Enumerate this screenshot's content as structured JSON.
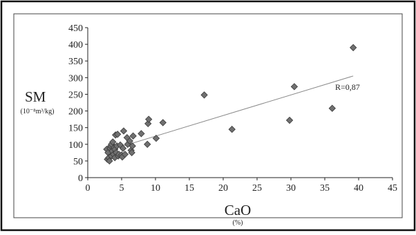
{
  "chart_data": {
    "type": "scatter",
    "xlabel": "CaO",
    "xunit": "(%)",
    "ylabel": "SM",
    "yunit": "(10⁻⁸m³/kg)",
    "xlim": [
      0,
      45
    ],
    "ylim": [
      0,
      450
    ],
    "xticks": [
      "0",
      "5",
      "10",
      "15",
      "20",
      "25",
      "30",
      "35",
      "40",
      "45"
    ],
    "yticks": [
      "0",
      "50",
      "100",
      "150",
      "200",
      "250",
      "300",
      "350",
      "400",
      "450"
    ],
    "grid": false,
    "marker": "diamond",
    "marker_color": "#707070",
    "annotation": "R=0,87",
    "trendline": {
      "x": [
        2.8,
        39.2
      ],
      "y": [
        80,
        305
      ]
    },
    "points": [
      [
        2.8,
        85
      ],
      [
        2.9,
        55
      ],
      [
        3.0,
        75
      ],
      [
        3.1,
        60
      ],
      [
        3.2,
        50
      ],
      [
        3.3,
        88
      ],
      [
        3.4,
        95
      ],
      [
        3.5,
        65
      ],
      [
        3.5,
        100
      ],
      [
        3.6,
        80
      ],
      [
        3.7,
        107
      ],
      [
        3.8,
        70
      ],
      [
        3.9,
        90
      ],
      [
        4.0,
        60
      ],
      [
        4.0,
        85
      ],
      [
        4.1,
        128
      ],
      [
        4.2,
        75
      ],
      [
        4.3,
        95
      ],
      [
        4.4,
        130
      ],
      [
        4.5,
        65
      ],
      [
        4.6,
        70
      ],
      [
        4.8,
        98
      ],
      [
        5.0,
        68
      ],
      [
        5.1,
        62
      ],
      [
        5.2,
        88
      ],
      [
        5.3,
        140
      ],
      [
        5.5,
        70
      ],
      [
        5.8,
        120
      ],
      [
        5.9,
        100
      ],
      [
        6.2,
        110
      ],
      [
        6.4,
        82
      ],
      [
        6.5,
        75
      ],
      [
        6.6,
        95
      ],
      [
        6.7,
        125
      ],
      [
        7.9,
        132
      ],
      [
        8.8,
        100
      ],
      [
        8.9,
        162
      ],
      [
        9.0,
        175
      ],
      [
        10.1,
        118
      ],
      [
        11.1,
        165
      ],
      [
        17.2,
        248
      ],
      [
        21.3,
        145
      ],
      [
        29.8,
        172
      ],
      [
        30.5,
        273
      ],
      [
        36.1,
        208
      ],
      [
        39.2,
        390
      ]
    ]
  }
}
